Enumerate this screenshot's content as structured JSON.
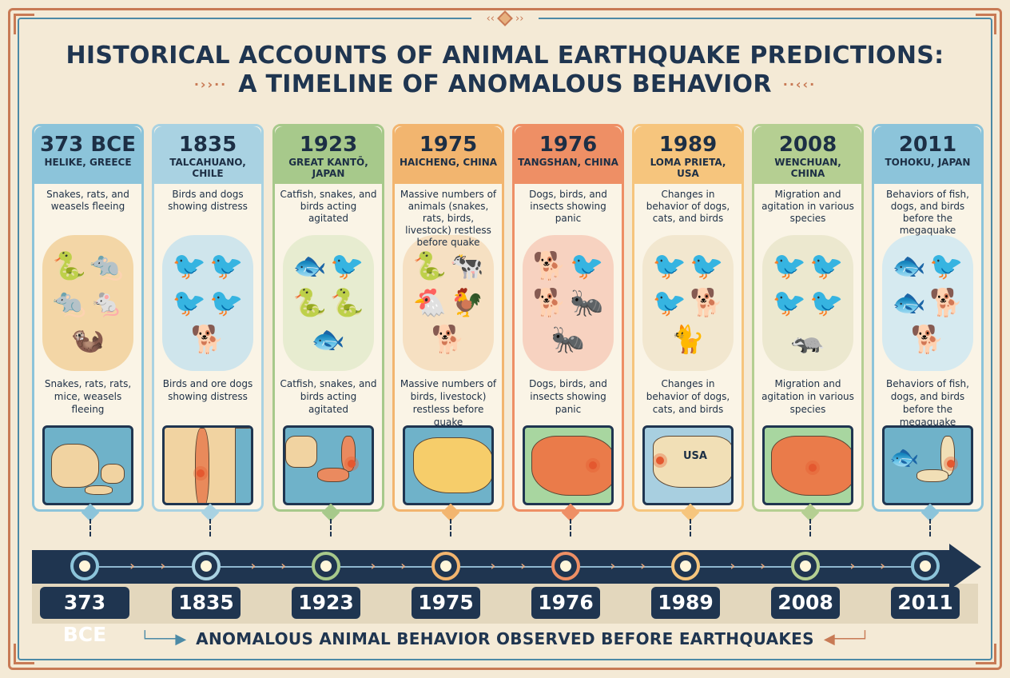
{
  "title": {
    "line1": "HISTORICAL ACCOUNTS OF ANIMAL EARTHQUAKE PREDICTIONS:",
    "line2": "A TIMELINE OF ANOMALOUS BEHAVIOR"
  },
  "events": [
    {
      "year": "373 BCE",
      "place": "HELIKE, GREECE",
      "desc_top": "Snakes, rats, and weasels fleeing",
      "desc_bottom": "Snakes, rats, rats, mice, weasels fleeing",
      "animals": [
        "snake",
        "rat",
        "rat",
        "mouse",
        "weasel"
      ],
      "color": "#8cc4da",
      "art_color": "#f3d6a6"
    },
    {
      "year": "1835",
      "place": "TALCAHUANO, CHILE",
      "desc_top": "Birds and dogs showing distress",
      "desc_bottom": "Birds and ore dogs showing distress",
      "animals": [
        "bird",
        "bird",
        "bird",
        "bird",
        "dog"
      ],
      "color": "#a9d2e2",
      "art_color": "#cfe5ec"
    },
    {
      "year": "1923",
      "place": "GREAT KANTŌ, JAPAN",
      "desc_top": "Catfish, snakes, and birds acting agitated",
      "desc_bottom": "Catfish, snakes, and birds acting agitated",
      "animals": [
        "catfish",
        "bird",
        "snake",
        "snake",
        "catfish"
      ],
      "color": "#a7c98b",
      "art_color": "#e7ecd0"
    },
    {
      "year": "1975",
      "place": "HAICHENG, CHINA",
      "desc_top": "Massive numbers of animals (snakes, rats, birds, livestock) restless before quake",
      "desc_bottom": "Massive numbers of birds, livestock) restless before quake",
      "animals": [
        "snake",
        "cow",
        "chicken",
        "rooster",
        "dog"
      ],
      "color": "#f2b56f",
      "art_color": "#f6e0c2"
    },
    {
      "year": "1976",
      "place": "TANGSHAN, CHINA",
      "desc_top": "Dogs, birds, and insects showing panic",
      "desc_bottom": "Dogs, birds, and insects showing panic",
      "animals": [
        "dog",
        "bird",
        "dog",
        "ant",
        "ant"
      ],
      "color": "#ee8f65",
      "art_color": "#f7d2c0"
    },
    {
      "year": "1989",
      "place": "LOMA PRIETA, USA",
      "desc_top": "Changes in behavior of dogs, cats, and birds",
      "desc_bottom": "Changes in behavior of dogs, cats, and birds",
      "animals": [
        "bird",
        "bird",
        "bird",
        "dog",
        "cat"
      ],
      "color": "#f6c57d",
      "art_color": "#f2e7cf"
    },
    {
      "year": "2008",
      "place": "WENCHUAN, CHINA",
      "desc_top": "Migration and agitation in various species",
      "desc_bottom": "Migration and agitation in various species",
      "animals": [
        "bird",
        "bird",
        "bird",
        "bird",
        "badger"
      ],
      "color": "#b5cf92",
      "art_color": "#ece8cf"
    },
    {
      "year": "2011",
      "place": "TOHOKU, JAPAN",
      "desc_top": "Behaviors of fish, dogs, and birds before the megaquake",
      "desc_bottom": "Behaviors of fish, dogs, and birds before the megaquake",
      "animals": [
        "fish",
        "bird",
        "fish",
        "dog",
        "dog"
      ],
      "color": "#8cc4da",
      "art_color": "#d6eaf0"
    }
  ],
  "map_label_usa": "USA",
  "footer": "ANOMALOUS ANIMAL BEHAVIOR OBSERVED BEFORE EARTHQUAKES",
  "colors": {
    "navy": "#1f3550",
    "terracotta": "#c87a55",
    "teal": "#4c8aa6",
    "background": "#f4ead6"
  }
}
